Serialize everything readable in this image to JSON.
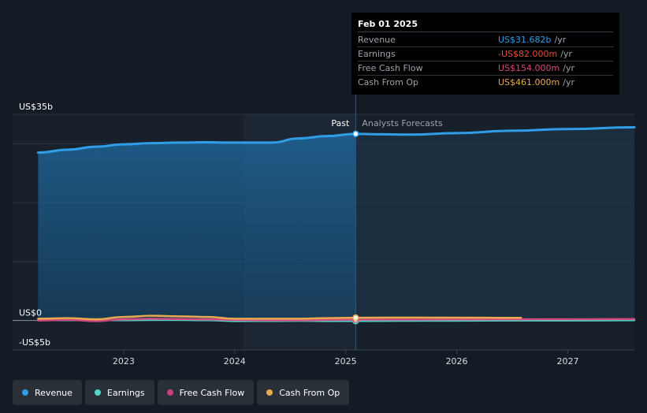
{
  "tooltip": {
    "date": "Feb 01 2025",
    "rows": [
      {
        "label": "Revenue",
        "value": "US$31.682b",
        "unit": "/yr",
        "color": "#2f9ee6"
      },
      {
        "label": "Earnings",
        "value": "-US$82.000m",
        "unit": "/yr",
        "color": "#e84e3c"
      },
      {
        "label": "Free Cash Flow",
        "value": "US$154.000m",
        "unit": "/yr",
        "color": "#d1487f"
      },
      {
        "label": "Cash From Op",
        "value": "US$461.000m",
        "unit": "/yr",
        "color": "#e8a94f"
      }
    ]
  },
  "legend": [
    {
      "label": "Revenue",
      "color": "#2f9ee6"
    },
    {
      "label": "Earnings",
      "color": "#4fd6c8"
    },
    {
      "label": "Free Cash Flow",
      "color": "#c7407e"
    },
    {
      "label": "Cash From Op",
      "color": "#e8a94f"
    }
  ],
  "chart_data": {
    "type": "line",
    "y_unit": "US$ billions",
    "ylim": [
      -5,
      35
    ],
    "xlim": [
      2022.0,
      2027.6
    ],
    "y_tick_labels": [
      {
        "value": 35,
        "label": "US$35b"
      },
      {
        "value": 0,
        "label": "US$0"
      },
      {
        "value": -5,
        "label": "-US$5b"
      }
    ],
    "x_ticks": [
      "2023",
      "2024",
      "2025",
      "2026",
      "2027"
    ],
    "x_tick_values": [
      2023,
      2024,
      2025,
      2026,
      2027
    ],
    "gridlines_y": [
      35,
      30,
      20,
      10,
      0
    ],
    "past_label": "Past",
    "forecast_label": "Analysts Forecasts",
    "past_end_x": 2025.09,
    "highlight_start_x": 2024.08,
    "series": [
      {
        "name": "Revenue",
        "color": "#2f9ee6",
        "points": [
          [
            2022.23,
            28.5
          ],
          [
            2022.5,
            29.0
          ],
          [
            2022.75,
            29.5
          ],
          [
            2023.0,
            29.9
          ],
          [
            2023.25,
            30.1
          ],
          [
            2023.5,
            30.2
          ],
          [
            2023.75,
            30.25
          ],
          [
            2024.0,
            30.2
          ],
          [
            2024.33,
            30.2
          ],
          [
            2024.58,
            30.9
          ],
          [
            2024.83,
            31.3
          ],
          [
            2025.09,
            31.68
          ],
          [
            2025.33,
            31.6
          ],
          [
            2025.58,
            31.55
          ],
          [
            2026.0,
            31.8
          ],
          [
            2026.5,
            32.2
          ],
          [
            2027.0,
            32.5
          ],
          [
            2027.6,
            32.8
          ]
        ]
      },
      {
        "name": "Earnings",
        "color": "#4fd6c8",
        "points": [
          [
            2022.23,
            0.1
          ],
          [
            2022.5,
            0.05
          ],
          [
            2022.75,
            0.05
          ],
          [
            2023.0,
            0.05
          ],
          [
            2023.25,
            0.1
          ],
          [
            2023.5,
            0.1
          ],
          [
            2023.75,
            0.05
          ],
          [
            2024.0,
            -0.1
          ],
          [
            2024.33,
            -0.08
          ],
          [
            2024.58,
            -0.05
          ],
          [
            2024.83,
            -0.1
          ],
          [
            2025.09,
            -0.08
          ],
          [
            2025.58,
            -0.05
          ],
          [
            2026.0,
            -0.03
          ],
          [
            2026.5,
            0.0
          ],
          [
            2027.0,
            0.0
          ],
          [
            2027.6,
            0.05
          ]
        ]
      },
      {
        "name": "Free Cash Flow",
        "color": "#d1487f",
        "points": [
          [
            2022.23,
            0.0
          ],
          [
            2022.5,
            0.1
          ],
          [
            2022.75,
            -0.1
          ],
          [
            2023.0,
            0.2
          ],
          [
            2023.25,
            0.3
          ],
          [
            2023.5,
            0.25
          ],
          [
            2023.75,
            0.2
          ],
          [
            2024.0,
            0.1
          ],
          [
            2024.33,
            0.05
          ],
          [
            2024.58,
            0.05
          ],
          [
            2024.83,
            0.1
          ],
          [
            2025.09,
            0.15
          ],
          [
            2025.58,
            0.15
          ],
          [
            2026.0,
            0.18
          ],
          [
            2026.5,
            0.2
          ],
          [
            2027.0,
            0.22
          ],
          [
            2027.6,
            0.25
          ]
        ]
      },
      {
        "name": "Cash From Op",
        "color": "#e8a94f",
        "points": [
          [
            2022.23,
            0.3
          ],
          [
            2022.5,
            0.4
          ],
          [
            2022.75,
            0.2
          ],
          [
            2023.0,
            0.6
          ],
          [
            2023.25,
            0.8
          ],
          [
            2023.5,
            0.7
          ],
          [
            2023.75,
            0.6
          ],
          [
            2024.0,
            0.3
          ],
          [
            2024.33,
            0.3
          ],
          [
            2024.58,
            0.3
          ],
          [
            2024.83,
            0.4
          ],
          [
            2025.09,
            0.46
          ],
          [
            2025.58,
            0.5
          ],
          [
            2026.0,
            0.48
          ],
          [
            2026.58,
            0.45
          ]
        ]
      }
    ]
  }
}
